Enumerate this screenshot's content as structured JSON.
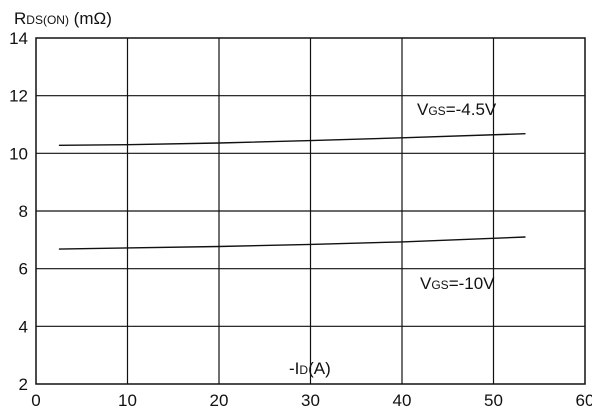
{
  "chart_data": {
    "type": "line",
    "title": "",
    "xlabel": {
      "prefix": "-I",
      "sub": "D",
      "suffix": "(A)"
    },
    "ylabel": {
      "prefix": "R",
      "sub": "DS(ON)",
      "suffix": " (mΩ)"
    },
    "xlim": [
      0,
      60
    ],
    "ylim": [
      2,
      14
    ],
    "xticks": [
      0,
      10,
      20,
      30,
      40,
      50,
      60
    ],
    "yticks": [
      2,
      4,
      6,
      8,
      10,
      12,
      14
    ],
    "grid": true,
    "series": [
      {
        "name": "VGS=-4.5V",
        "label": {
          "prefix": "V",
          "sub": "GS",
          "suffix": "=-4.5V"
        },
        "x": [
          2.5,
          10,
          20,
          30,
          40,
          53.5
        ],
        "y": [
          10.28,
          10.3,
          10.36,
          10.44,
          10.54,
          10.68
        ]
      },
      {
        "name": "VGS=-10V",
        "label": {
          "prefix": "V",
          "sub": "GS",
          "suffix": "=-10V"
        },
        "x": [
          2.5,
          10,
          20,
          30,
          40,
          53.5
        ],
        "y": [
          6.68,
          6.72,
          6.77,
          6.84,
          6.93,
          7.1
        ]
      }
    ]
  }
}
